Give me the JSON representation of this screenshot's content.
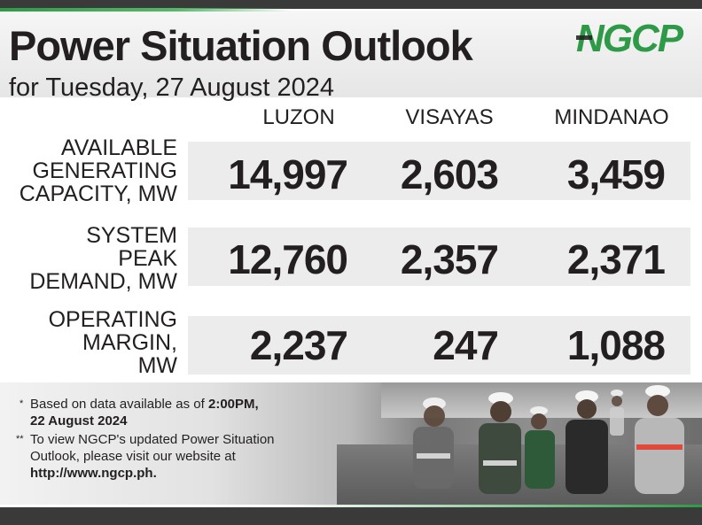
{
  "header": {
    "title": "Power Situation Outlook",
    "subtitle": "for Tuesday, 27 August 2024",
    "logo_text": "NGCP"
  },
  "table": {
    "columns": [
      "LUZON",
      "VISAYAS",
      "MINDANAO"
    ],
    "rows": [
      {
        "label_lines": [
          "AVAILABLE",
          "GENERATING",
          "CAPACITY, MW"
        ],
        "values": [
          "14,997",
          "2,603",
          "3,459"
        ]
      },
      {
        "label_lines": [
          "SYSTEM",
          "PEAK",
          "DEMAND, MW"
        ],
        "values": [
          "12,760",
          "2,357",
          "2,371"
        ]
      },
      {
        "label_lines": [
          "OPERATING",
          "MARGIN,",
          "MW"
        ],
        "values": [
          "2,237",
          "247",
          "1,088"
        ]
      }
    ]
  },
  "notes": {
    "note1_mark": "*",
    "note1_text": "Based on data available as of ",
    "note1_bold_time": "2:00PM,",
    "note1_bold_date": "22 August 2024",
    "note2_mark": "**",
    "note2_line1": "To view NGCP's updated Power Situation",
    "note2_line2": "Outlook, please visit our website at",
    "note2_url": "http://www.ngcp.ph."
  },
  "colors": {
    "brand_green": "#2e9a47",
    "dark_bar": "#3a3a3a",
    "band_gray": "#ececec",
    "text": "#231f20"
  }
}
